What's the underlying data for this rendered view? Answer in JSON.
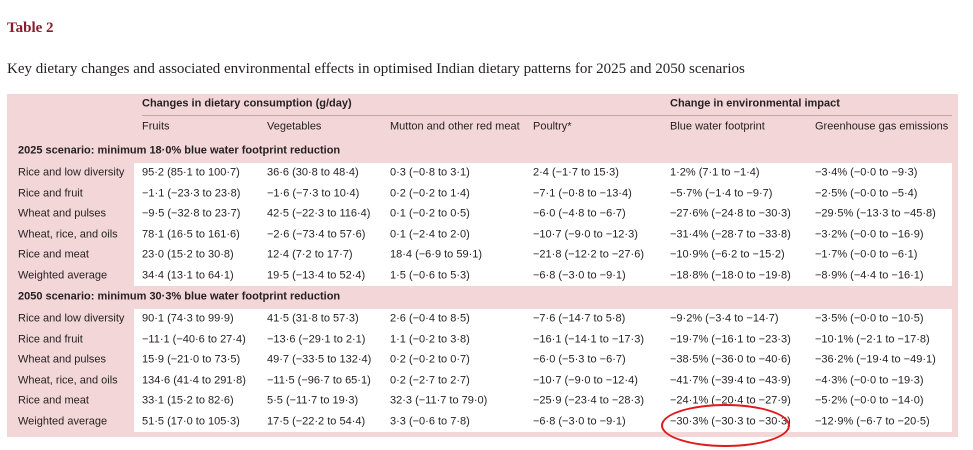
{
  "table_label": "Table 2",
  "caption": "Key dietary changes and associated environmental effects in optimised Indian dietary patterns for 2025 and 2050 scenarios",
  "group_headers": {
    "consumption": "Changes in dietary consumption (g/day)",
    "environment": "Change in environmental impact"
  },
  "columns": [
    "Fruits",
    "Vegetables",
    "Mutton and other red meat",
    "Poultry*",
    "Blue water footprint",
    "Greenhouse gas emissions"
  ],
  "sections": [
    {
      "title": "2025 scenario: minimum 18·0% blue water footprint reduction",
      "rows": [
        {
          "label": "Rice and low diversity",
          "cells": [
            "95·2 (85·1 to 100·7)",
            "36·6 (30·8 to 48·4)",
            "0·3 (−0·8 to 3·1)",
            "2·4 (−1·7 to 15·3)",
            "1·2% (7·1 to −1·4)",
            "−3·4% (−0·0 to −9·3)"
          ]
        },
        {
          "label": "Rice and fruit",
          "cells": [
            "−1·1 (−23·3 to 23·8)",
            "−1·6 (−7·3 to 10·4)",
            "0·2 (−0·2 to 1·4)",
            "−7·1 (−0·8 to −13·4)",
            "−5·7% (−1·4 to −9·7)",
            "−2·5% (−0·0 to −5·4)"
          ]
        },
        {
          "label": "Wheat and pulses",
          "cells": [
            "−9·5 (−32·8 to 23·7)",
            "42·5 (−22·3 to 116·4)",
            "0·1 (−0·2 to 0·5)",
            "−6·0 (−4·8 to −6·7)",
            "−27·6% (−24·8 to −30·3)",
            "−29·5% (−13·3 to −45·8)"
          ]
        },
        {
          "label": "Wheat, rice, and oils",
          "cells": [
            "78·1 (16·5 to 161·6)",
            "−2·6 (−73·4 to 57·6)",
            "0·1 (−2·4 to 2·0)",
            "−10·7 (−9·0 to −12·3)",
            "−31·4% (−28·7 to −33·8)",
            "−3·2% (−0·0 to −16·9)"
          ]
        },
        {
          "label": "Rice and meat",
          "cells": [
            "23·0 (15·2 to 30·8)",
            "12·4 (7·2 to 17·7)",
            "18·4 (−6·9 to 59·1)",
            "−21·8 (−12·2 to −27·6)",
            "−10·9% (−6·2 to −15·2)",
            "−1·7% (−0·0 to −6·1)"
          ]
        },
        {
          "label": "Weighted average",
          "cells": [
            "34·4 (13·1 to 64·1)",
            "19·5 (−13·4 to 52·4)",
            "1·5 (−0·6 to 5·3)",
            "−6·8 (−3·0 to −9·1)",
            "−18·8% (−18·0 to −19·8)",
            "−8·9% (−4·4 to −16·1)"
          ]
        }
      ]
    },
    {
      "title": "2050 scenario: minimum 30·3% blue water footprint reduction",
      "rows": [
        {
          "label": "Rice and low diversity",
          "cells": [
            "90·1 (74·3 to 99·9)",
            "41·5 (31·8 to 57·3)",
            "2·6 (−0·4 to 8·5)",
            "−7·6 (−14·7 to 5·8)",
            "−9·2% (−3·4 to −14·7)",
            "−3·5% (−0·0 to −10·5)"
          ]
        },
        {
          "label": "Rice and fruit",
          "cells": [
            "−11·1 (−40·6 to 27·4)",
            "−13·6 (−29·1 to 2·1)",
            "1·1 (−0·2 to 3·8)",
            "−16·1 (−14·1 to −17·3)",
            "−19·7% (−16·1 to −23·3)",
            "−10·1% (−2·1 to −17·8)"
          ]
        },
        {
          "label": "Wheat and pulses",
          "cells": [
            "15·9 (−21·0 to 73·5)",
            "49·7 (−33·5 to 132·4)",
            "0·2 (−0·2 to 0·7)",
            "−6·0 (−5·3 to −6·7)",
            "−38·5% (−36·0 to −40·6)",
            "−36·2% (−19·4 to −49·1)"
          ]
        },
        {
          "label": "Wheat, rice, and oils",
          "cells": [
            "134·6 (41·4 to 291·8)",
            "−11·5 (−96·7 to 65·1)",
            "0·2 (−2·7 to 2·7)",
            "−10·7 (−9·0 to −12·4)",
            "−41·7% (−39·4 to −43·9)",
            "−4·3% (−0·0 to −19·3)"
          ]
        },
        {
          "label": "Rice and meat",
          "cells": [
            "33·1 (15·2 to 82·6)",
            "5·5 (−11·7 to 19·3)",
            "32·3 (−11·7 to 79·0)",
            "−25·9 (−23·4 to −28·3)",
            "−24·1% (−20·4 to −27·9)",
            "−5·2% (−0·0 to −14·0)"
          ]
        },
        {
          "label": "Weighted average",
          "cells": [
            "51·5 (17·0 to 105·3)",
            "17·5 (−22·2 to 54·4)",
            "3·3 (−0·6 to 7·8)",
            "−6·8 (−3·0 to −9·1)",
            "−30·3% (−30·3 to −30·3)",
            "−12·9% (−6·7 to −20·5)"
          ]
        }
      ]
    }
  ],
  "colors": {
    "title_red": "#8b1a2f",
    "header_bg": "#f3d6d8",
    "annotation_red": "#e0191c"
  }
}
